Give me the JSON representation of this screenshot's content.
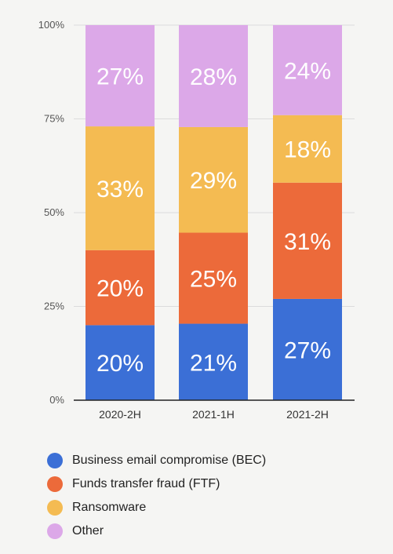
{
  "chart_data": {
    "type": "bar",
    "stacked": true,
    "categories": [
      "2020-2H",
      "2021-1H",
      "2021-2H"
    ],
    "series": [
      {
        "name": "Business email compromise (BEC)",
        "color": "#3b6fd6",
        "values": [
          20,
          21,
          27
        ],
        "labels": [
          "20%",
          "21%",
          "27%"
        ]
      },
      {
        "name": "Funds transfer fraud (FTF)",
        "color": "#ec6a3a",
        "values": [
          20,
          25,
          31
        ],
        "labels": [
          "20%",
          "25%",
          "31%"
        ]
      },
      {
        "name": "Ransomware",
        "color": "#f4bb52",
        "values": [
          33,
          29,
          18
        ],
        "labels": [
          "33%",
          "29%",
          "18%"
        ]
      },
      {
        "name": "Other",
        "color": "#dca8e8",
        "values": [
          27,
          28,
          24
        ],
        "labels": [
          "27%",
          "28%",
          "24%"
        ]
      }
    ],
    "yticks": [
      "0%",
      "25%",
      "50%",
      "75%",
      "100%"
    ],
    "ylim": [
      0,
      100
    ],
    "grid": true,
    "legend_position": "bottom-left"
  }
}
